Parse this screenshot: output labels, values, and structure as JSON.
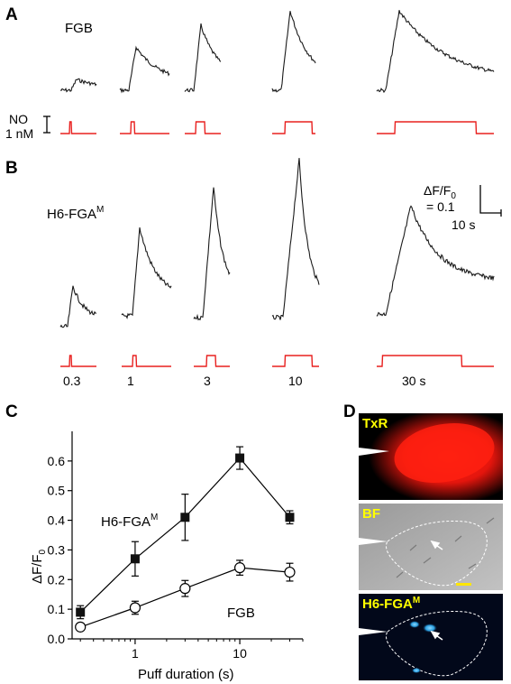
{
  "panels": {
    "a": {
      "letter": "A",
      "indicator_name": "FGB",
      "no_label_line1": "NO",
      "no_label_line2": "1 nM",
      "traces": [
        {
          "name": "FGB",
          "puff_s": 0.3
        },
        {
          "name": "FGB",
          "puff_s": 1
        },
        {
          "name": "FGB",
          "puff_s": 3
        },
        {
          "name": "FGB",
          "puff_s": 10
        },
        {
          "name": "FGB",
          "puff_s": 30
        }
      ]
    },
    "b": {
      "letter": "B",
      "indicator_name": "H6-FGA",
      "indicator_sup": "M",
      "scale_y_line1": "ΔF/F",
      "scale_y_sub": "0",
      "scale_y_line2": "= 0.1",
      "scale_x": "10 s",
      "durations": [
        "0.3",
        "1",
        "3",
        "10",
        "30 s"
      ]
    },
    "c": {
      "letter": "C"
    },
    "d": {
      "letter": "D",
      "images": [
        {
          "label": "TxR",
          "sup": ""
        },
        {
          "label": "BF",
          "sup": ""
        },
        {
          "label": "H6-FGA",
          "sup": "M"
        }
      ]
    }
  },
  "chart_data": {
    "type": "scatter",
    "xlabel": "Puff duration (s)",
    "ylabel": "ΔF/F",
    "ylabel_sub": "0",
    "xscale": "log",
    "xlim": [
      0.25,
      40
    ],
    "ylim": [
      0,
      0.7
    ],
    "xticks": [
      1,
      10
    ],
    "xtick_labels": [
      "1",
      "10"
    ],
    "yticks": [
      0.0,
      0.1,
      0.2,
      0.3,
      0.4,
      0.5,
      0.6
    ],
    "ytick_labels": [
      "0.0",
      "0.1",
      "0.2",
      "0.3",
      "0.4",
      "0.5",
      "0.6"
    ],
    "series": [
      {
        "name": "H6-FGA",
        "name_sup": "M",
        "marker": "filled-square",
        "x": [
          0.3,
          1,
          3,
          10,
          30
        ],
        "y": [
          0.09,
          0.27,
          0.41,
          0.61,
          0.41
        ],
        "err": [
          0.022,
          0.058,
          0.078,
          0.038,
          0.022
        ]
      },
      {
        "name": "FGB",
        "name_sup": "",
        "marker": "open-circle",
        "x": [
          0.3,
          1,
          3,
          10,
          30
        ],
        "y": [
          0.04,
          0.105,
          0.17,
          0.24,
          0.225
        ],
        "err": [
          0.012,
          0.022,
          0.027,
          0.025,
          0.03
        ]
      }
    ]
  },
  "colors": {
    "trace": "#1a1a1a",
    "no_trace": "#e8201f",
    "txr_glow": "#ff1a10",
    "fga_glow": "#2a9fe0",
    "scale_bar": "#ffe600"
  }
}
